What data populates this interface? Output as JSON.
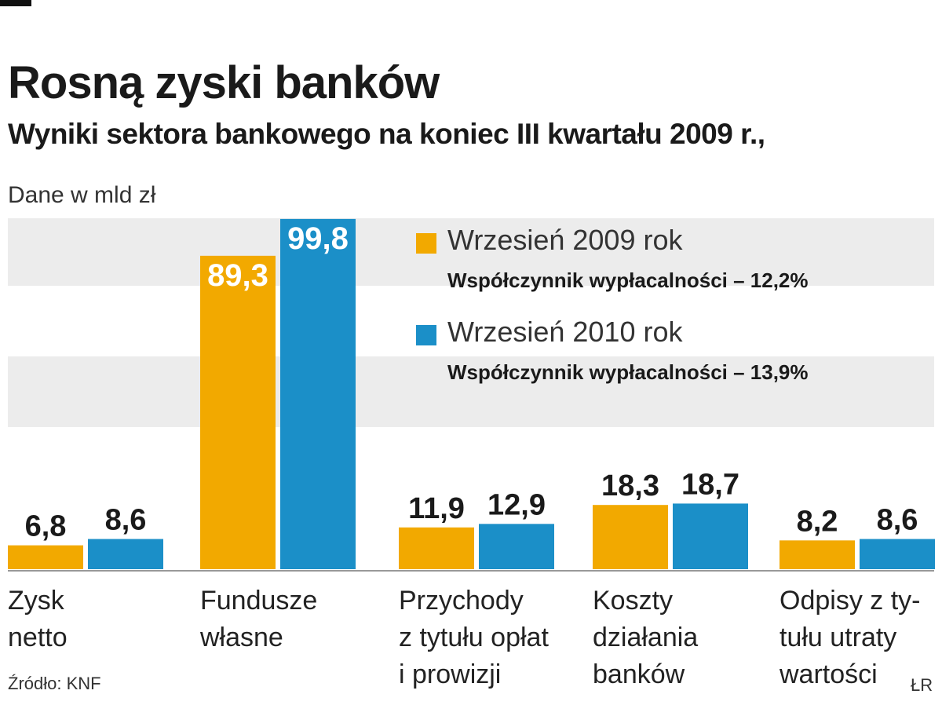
{
  "title": "Rosną zyski banków",
  "subtitle": "Wyniki sektora bankowego na koniec III kwartału 2009 r.,",
  "units_note": "Dane w mld zł",
  "source": "Źródło: KNF",
  "credit": "ŁR",
  "colors": {
    "series_2009": "#f2a900",
    "series_2010": "#1b8fc8",
    "band": "#ececec",
    "axis": "#999999"
  },
  "legend": [
    {
      "label": "Wrzesień 2009 rok",
      "note": "Współczynnik wypłacalności – 12,2%"
    },
    {
      "label": "Wrzesień 2010 rok",
      "note": "Współczynnik wypłacalności – 13,9%"
    }
  ],
  "chart_data": {
    "type": "bar",
    "categories": [
      "Zysk\nnetto",
      "Fundusze\nwłasne",
      "Przychody\nz tytułu opłat\ni prowizji",
      "Koszty\ndziałania\nbanków",
      "Odpisy z ty-\ntułu utraty\nwartości"
    ],
    "series": [
      {
        "name": "Wrzesień 2009 rok",
        "values": [
          6.8,
          89.3,
          11.9,
          18.3,
          8.2
        ],
        "labels": [
          "6,8",
          "89,3",
          "11,9",
          "18,3",
          "8,2"
        ]
      },
      {
        "name": "Wrzesień 2010 rok",
        "values": [
          8.6,
          99.8,
          12.9,
          18.7,
          8.6
        ],
        "labels": [
          "8,6",
          "99,8",
          "12,9",
          "18,7",
          "8,6"
        ]
      }
    ],
    "ylim": [
      0,
      100
    ],
    "xlabel": "",
    "ylabel": "",
    "grid": "alternating horizontal bands",
    "legend_position": "top-right"
  }
}
